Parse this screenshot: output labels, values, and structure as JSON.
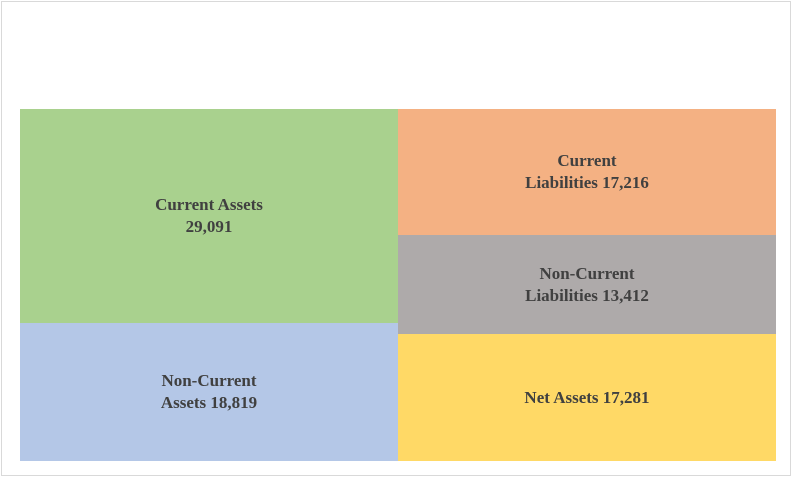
{
  "chart_data": {
    "type": "treemap",
    "layout": "two balance-sheet columns: assets (left) vs liabilities + net assets (right)",
    "columns": [
      {
        "name": "assets",
        "items": [
          {
            "key": "current_assets",
            "label_lines": [
              "Current Assets",
              "29,091"
            ],
            "value": 29091,
            "color": "#a9d18e"
          },
          {
            "key": "non_current_assets",
            "label_lines": [
              "Non-Current",
              "Assets 18,819"
            ],
            "value": 18819,
            "color": "#b4c7e7"
          }
        ]
      },
      {
        "name": "liabilities_and_equity",
        "items": [
          {
            "key": "current_liabilities",
            "label_lines": [
              "Current",
              "Liabilities 17,216"
            ],
            "value": 17216,
            "color": "#f4b183"
          },
          {
            "key": "non_current_liabilities",
            "label_lines": [
              "Non-Current",
              "Liabilities 13,412"
            ],
            "value": 13412,
            "color": "#aeaaaa"
          },
          {
            "key": "net_assets",
            "label_lines": [
              "Net Assets 17,281"
            ],
            "value": 17281,
            "color": "#ffd966"
          }
        ]
      }
    ]
  }
}
